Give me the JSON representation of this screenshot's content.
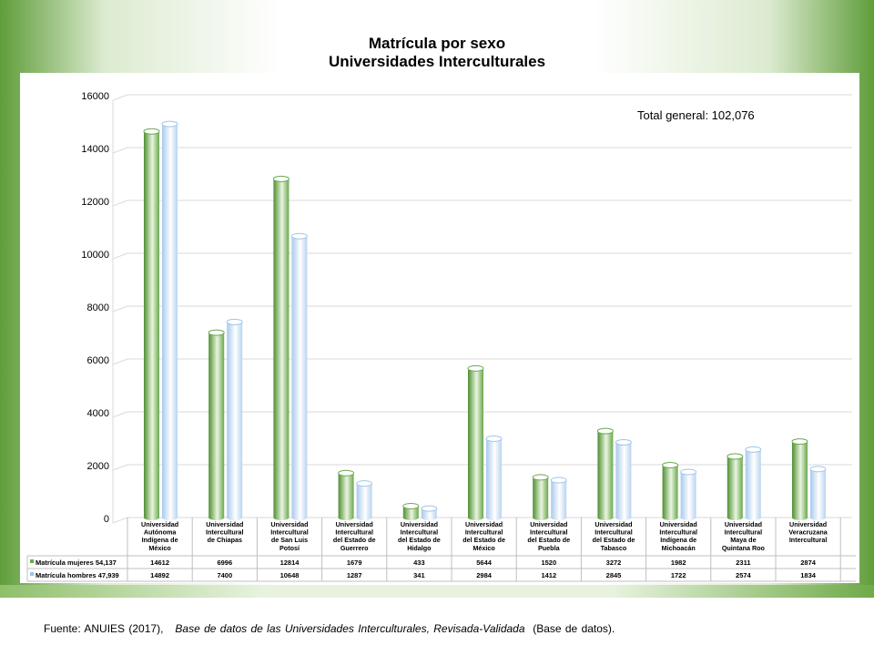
{
  "header": {
    "title_line1": "Matrícula por sexo",
    "title_line2": "Universidades Interculturales"
  },
  "annotation": "Total general: 102,076",
  "source": {
    "prefix": "Fuente: ANUIES (2017),",
    "italic": "Base de datos de las Universidades Interculturales, Revisada-Validada",
    "suffix": "(Base de datos)."
  },
  "colors": {
    "mujeres": "#6aa84f",
    "hombres": "#9fc5e8",
    "grid": "#d9d9d9"
  },
  "chart_data": {
    "type": "bar",
    "style": "3d-cylinder",
    "title": "Matrícula por sexo Universidades Interculturales",
    "ylim": [
      0,
      16000
    ],
    "yticks": [
      0,
      2000,
      4000,
      6000,
      8000,
      10000,
      12000,
      14000,
      16000
    ],
    "grid": true,
    "categories": [
      [
        "Universidad",
        "Autónoma",
        "Indígena de",
        "México"
      ],
      [
        "Universidad",
        "Intercultural",
        "de Chiapas"
      ],
      [
        "Universidad",
        "Intercultural",
        "de San Luis",
        "Potosí"
      ],
      [
        "Universidad",
        "Intercultural",
        "del Estado de",
        "Guerrero"
      ],
      [
        "Universidad",
        "Intercultural",
        "del Estado de",
        "Hidalgo"
      ],
      [
        "Universidad",
        "Intercultural",
        "del Estado de",
        "México"
      ],
      [
        "Universidad",
        "Intercultural",
        "del Estado de",
        "Puebla"
      ],
      [
        "Universidad",
        "Intercultural",
        "del Estado de",
        "Tabasco"
      ],
      [
        "Universidad",
        "Intercultural",
        "Indígena de",
        "Michoacán"
      ],
      [
        "Universidad",
        "Intercultural",
        "Maya de",
        "Quintana Roo"
      ],
      [
        "Universidad",
        "Veracruzana",
        "Intercultural"
      ]
    ],
    "series": [
      {
        "name": "Matrícula mujeres 54,137",
        "values": [
          14612,
          6996,
          12814,
          1679,
          433,
          5644,
          1520,
          3272,
          1982,
          2311,
          2874
        ]
      },
      {
        "name": "Matrícula hombres 47,939",
        "values": [
          14892,
          7400,
          10648,
          1287,
          341,
          2984,
          1412,
          2845,
          1722,
          2574,
          1834
        ]
      }
    ]
  }
}
